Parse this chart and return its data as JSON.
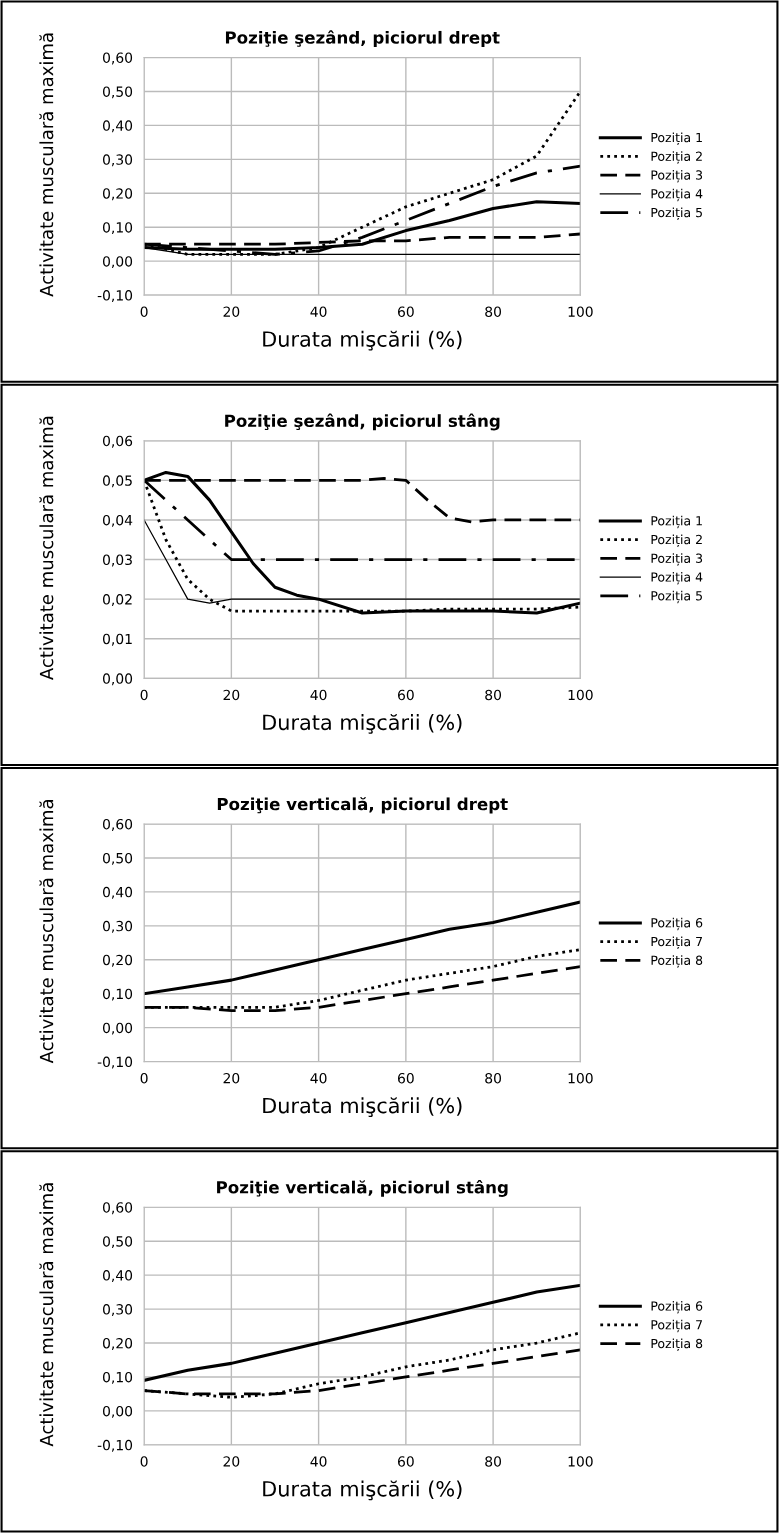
{
  "chart_data": [
    {
      "type": "line",
      "title": "Poziţie şezând, piciorul drept",
      "xlabel": "Durata mişcării (%)",
      "ylabel": "Activitate musculară maximă",
      "x": [
        0,
        10,
        20,
        30,
        40,
        50,
        60,
        70,
        80,
        90,
        100
      ],
      "xlim": [
        0,
        100
      ],
      "xticks": [
        0,
        20,
        40,
        60,
        80,
        100
      ],
      "ylim": [
        -0.1,
        0.6
      ],
      "yticks": [
        {
          "value": -0.1,
          "label": "-0,10"
        },
        {
          "value": 0,
          "label": "0,00"
        },
        {
          "value": 0.1,
          "label": "0,10"
        },
        {
          "value": 0.2,
          "label": "0,20"
        },
        {
          "value": 0.3,
          "label": "0,30"
        },
        {
          "value": 0.4,
          "label": "0,40"
        },
        {
          "value": 0.5,
          "label": "0,50"
        },
        {
          "value": 0.6,
          "label": "0,60"
        }
      ],
      "grid": true,
      "legend": "right",
      "series": [
        {
          "name": "Poziția 1",
          "color": "#000000",
          "line_style": "solid",
          "values": [
            0.04,
            0.035,
            0.035,
            0.035,
            0.04,
            0.05,
            0.09,
            0.12,
            0.155,
            0.175,
            0.17
          ]
        },
        {
          "name": "Poziția 2",
          "color": "#000000",
          "line_style": "dotted",
          "values": [
            0.05,
            0.02,
            0.02,
            0.02,
            0.04,
            0.1,
            0.16,
            0.2,
            0.24,
            0.31,
            0.5
          ]
        },
        {
          "name": "Poziția 3",
          "color": "#000000",
          "line_style": "dashed",
          "values": [
            0.05,
            0.05,
            0.05,
            0.05,
            0.055,
            0.06,
            0.06,
            0.07,
            0.07,
            0.07,
            0.08
          ]
        },
        {
          "name": "Poziția 4",
          "color": "#000000",
          "line_style": "solid",
          "values": [
            0.04,
            0.02,
            0.02,
            0.02,
            0.02,
            0.02,
            0.02,
            0.02,
            0.02,
            0.02,
            0.02
          ]
        },
        {
          "name": "Poziția 5",
          "color": "#000000",
          "line_style": "dashdot",
          "values": [
            0.05,
            0.04,
            0.03,
            0.02,
            0.03,
            0.07,
            0.12,
            0.17,
            0.22,
            0.26,
            0.28
          ]
        }
      ]
    },
    {
      "type": "line",
      "title": "Poziţie şezând, piciorul stâng",
      "xlabel": "Durata mişcării (%)",
      "ylabel": "Activitate musculară maximă",
      "xlim": [
        0,
        100
      ],
      "xticks": [
        0,
        20,
        40,
        60,
        80,
        100
      ],
      "ylim": [
        0,
        0.06
      ],
      "yticks": [
        {
          "value": 0,
          "label": "0,00"
        },
        {
          "value": 0.01,
          "label": "0,01"
        },
        {
          "value": 0.02,
          "label": "0,02"
        },
        {
          "value": 0.03,
          "label": "0,03"
        },
        {
          "value": 0.04,
          "label": "0,04"
        },
        {
          "value": 0.05,
          "label": "0,05"
        },
        {
          "value": 0.06,
          "label": "0,06"
        }
      ],
      "grid": true,
      "legend": "right",
      "series": [
        {
          "name": "Poziția 1",
          "color": "#000000",
          "line_style": "solid",
          "x": [
            0,
            5,
            10,
            15,
            20,
            25,
            30,
            35,
            40,
            50,
            60,
            70,
            80,
            90,
            100
          ],
          "values": [
            0.05,
            0.052,
            0.051,
            0.045,
            0.037,
            0.029,
            0.023,
            0.021,
            0.02,
            0.0165,
            0.017,
            0.017,
            0.017,
            0.0165,
            0.019
          ]
        },
        {
          "name": "Poziția 2",
          "color": "#000000",
          "line_style": "dotted",
          "x": [
            0,
            5,
            10,
            15,
            20,
            25,
            30,
            35,
            40,
            50,
            60,
            70,
            80,
            90,
            100
          ],
          "values": [
            0.05,
            0.035,
            0.025,
            0.02,
            0.017,
            0.017,
            0.017,
            0.017,
            0.017,
            0.017,
            0.017,
            0.0175,
            0.0175,
            0.0175,
            0.018
          ]
        },
        {
          "name": "Poziția 3",
          "color": "#000000",
          "line_style": "dashed",
          "x": [
            0,
            10,
            20,
            30,
            40,
            50,
            55,
            60,
            65,
            70,
            75,
            80,
            90,
            100
          ],
          "values": [
            0.05,
            0.05,
            0.05,
            0.05,
            0.05,
            0.05,
            0.0505,
            0.05,
            0.045,
            0.0405,
            0.0395,
            0.04,
            0.04,
            0.04
          ]
        },
        {
          "name": "Poziția 4",
          "color": "#000000",
          "line_style": "solid",
          "x": [
            0,
            5,
            10,
            15,
            20,
            30,
            40,
            50,
            60,
            70,
            80,
            90,
            100
          ],
          "values": [
            0.04,
            0.03,
            0.02,
            0.019,
            0.02,
            0.02,
            0.02,
            0.02,
            0.02,
            0.02,
            0.02,
            0.02,
            0.02
          ]
        },
        {
          "name": "Poziția 5",
          "color": "#000000",
          "line_style": "dashdot",
          "x": [
            0,
            5,
            10,
            15,
            20,
            25,
            30,
            40,
            50,
            60,
            70,
            80,
            90,
            100
          ],
          "values": [
            0.05,
            0.045,
            0.04,
            0.035,
            0.03,
            0.03,
            0.03,
            0.03,
            0.03,
            0.03,
            0.03,
            0.03,
            0.03,
            0.03
          ]
        }
      ]
    },
    {
      "type": "line",
      "title": "Poziţie verticală, piciorul drept",
      "xlabel": "Durata mişcării (%)",
      "ylabel": "Activitate musculară maximă",
      "x": [
        0,
        10,
        20,
        30,
        40,
        50,
        60,
        70,
        80,
        90,
        100
      ],
      "xlim": [
        0,
        100
      ],
      "xticks": [
        0,
        20,
        40,
        60,
        80,
        100
      ],
      "ylim": [
        -0.1,
        0.6
      ],
      "yticks": [
        {
          "value": -0.1,
          "label": "-0,10"
        },
        {
          "value": 0,
          "label": "0,00"
        },
        {
          "value": 0.1,
          "label": "0,10"
        },
        {
          "value": 0.2,
          "label": "0,20"
        },
        {
          "value": 0.3,
          "label": "0,30"
        },
        {
          "value": 0.4,
          "label": "0,40"
        },
        {
          "value": 0.5,
          "label": "0,50"
        },
        {
          "value": 0.6,
          "label": "0,60"
        }
      ],
      "grid": true,
      "legend": "right",
      "series": [
        {
          "name": "Poziția 6",
          "color": "#000000",
          "line_style": "solid",
          "values": [
            0.1,
            0.12,
            0.14,
            0.17,
            0.2,
            0.23,
            0.26,
            0.29,
            0.31,
            0.34,
            0.37
          ]
        },
        {
          "name": "Poziția 7",
          "color": "#000000",
          "line_style": "dotted",
          "values": [
            0.06,
            0.06,
            0.06,
            0.06,
            0.08,
            0.11,
            0.14,
            0.16,
            0.18,
            0.21,
            0.23
          ]
        },
        {
          "name": "Poziția 8",
          "color": "#000000",
          "line_style": "dashed",
          "values": [
            0.06,
            0.06,
            0.05,
            0.05,
            0.06,
            0.08,
            0.1,
            0.12,
            0.14,
            0.16,
            0.18
          ]
        }
      ]
    },
    {
      "type": "line",
      "title": "Poziţie verticală, piciorul stâng",
      "xlabel": "Durata mişcării (%)",
      "ylabel": "Activitate musculară maximă",
      "x": [
        0,
        10,
        20,
        30,
        40,
        50,
        60,
        70,
        80,
        90,
        100
      ],
      "xlim": [
        0,
        100
      ],
      "xticks": [
        0,
        20,
        40,
        60,
        80,
        100
      ],
      "ylim": [
        -0.1,
        0.6
      ],
      "yticks": [
        {
          "value": -0.1,
          "label": "-0,10"
        },
        {
          "value": 0,
          "label": "0,00"
        },
        {
          "value": 0.1,
          "label": "0,10"
        },
        {
          "value": 0.2,
          "label": "0,20"
        },
        {
          "value": 0.3,
          "label": "0,30"
        },
        {
          "value": 0.4,
          "label": "0,40"
        },
        {
          "value": 0.5,
          "label": "0,50"
        },
        {
          "value": 0.6,
          "label": "0,60"
        }
      ],
      "grid": true,
      "legend": "right",
      "series": [
        {
          "name": "Poziția 6",
          "color": "#000000",
          "line_style": "solid",
          "values": [
            0.09,
            0.12,
            0.14,
            0.17,
            0.2,
            0.23,
            0.26,
            0.29,
            0.32,
            0.35,
            0.37
          ]
        },
        {
          "name": "Poziția 7",
          "color": "#000000",
          "line_style": "dotted",
          "values": [
            0.06,
            0.05,
            0.04,
            0.05,
            0.08,
            0.1,
            0.13,
            0.15,
            0.18,
            0.2,
            0.23
          ]
        },
        {
          "name": "Poziția 8",
          "color": "#000000",
          "line_style": "dashed",
          "values": [
            0.06,
            0.05,
            0.05,
            0.05,
            0.06,
            0.08,
            0.1,
            0.12,
            0.14,
            0.16,
            0.18
          ]
        }
      ]
    }
  ]
}
